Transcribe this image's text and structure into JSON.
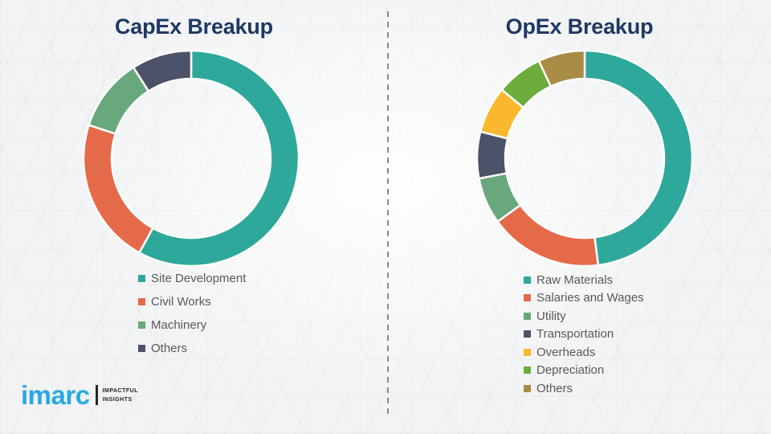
{
  "page": {
    "background_color": "#f2f3f4"
  },
  "divider": {
    "type": "vertical-dashed-line",
    "color": "#868c94"
  },
  "brand": {
    "name": "imarc",
    "tagline_line1": "IMPACTFUL",
    "tagline_line2": "INSIGHTS",
    "logo_color": "#29A9E1"
  },
  "chart_data": [
    {
      "type": "pie",
      "subtype": "donut",
      "title": "CapEx Breakup",
      "title_color": "#1F3864",
      "labels": [
        "Site Development",
        "Civil Works",
        "Machinery",
        "Others"
      ],
      "values": [
        58,
        22,
        11,
        9
      ],
      "units": "share % (estimated from arc angles; no data labels shown)",
      "colors": [
        "#2EA89B",
        "#E56A4A",
        "#68A87C",
        "#4C5268"
      ],
      "start_angle_deg": 0,
      "direction": "clockwise",
      "hole_ratio": 0.74,
      "segment_border_color": "#ffffff",
      "legend_position": "below-chart-left"
    },
    {
      "type": "pie",
      "subtype": "donut",
      "title": "OpEx Breakup",
      "title_color": "#1F3864",
      "labels": [
        "Raw Materials",
        "Salaries and Wages",
        "Utility",
        "Transportation",
        "Overheads",
        "Depreciation",
        "Others"
      ],
      "values": [
        48,
        17,
        7,
        7,
        7,
        7,
        7
      ],
      "units": "share % (estimated from arc angles; no data labels shown)",
      "colors": [
        "#2EA89B",
        "#E56A4A",
        "#68A87C",
        "#4C5268",
        "#FAB82C",
        "#6CAD3E",
        "#A98C46"
      ],
      "start_angle_deg": 0,
      "direction": "clockwise",
      "hole_ratio": 0.74,
      "segment_border_color": "#ffffff",
      "legend_position": "below-chart-left"
    }
  ]
}
